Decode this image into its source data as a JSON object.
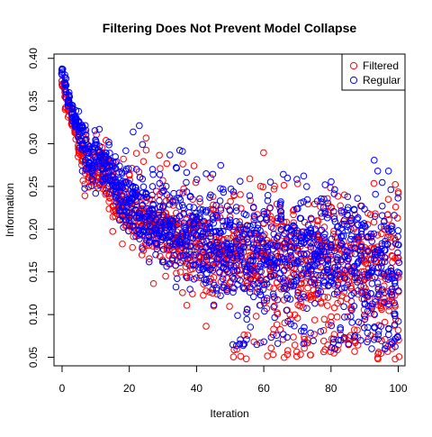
{
  "chart_data": {
    "type": "scatter",
    "title": "Filtering Does Not Prevent Model Collapse",
    "xlabel": "Iteration",
    "ylabel": "Information",
    "xlim": [
      -2.4,
      102
    ],
    "ylim": [
      0.04,
      0.405
    ],
    "xticks": [
      "0",
      "20",
      "40",
      "60",
      "80",
      "100"
    ],
    "yticks": [
      "0.05",
      "0.10",
      "0.15",
      "0.20",
      "0.25",
      "0.30",
      "0.35",
      "0.40"
    ],
    "legend_position": "top-right",
    "marker": "open-circle",
    "grid": false,
    "series": [
      {
        "name": "Filtered",
        "color": "#ff0000",
        "iterations": [
          0,
          100
        ],
        "mean_start": 0.372,
        "mean_end": 0.155,
        "outlier_band": [
          0.048,
          0.31
        ]
      },
      {
        "name": "Regular",
        "color": "#0000ff",
        "iterations": [
          0,
          100
        ],
        "mean_start": 0.386,
        "mean_end": 0.16,
        "outlier_band": [
          0.06,
          0.27
        ]
      }
    ]
  }
}
